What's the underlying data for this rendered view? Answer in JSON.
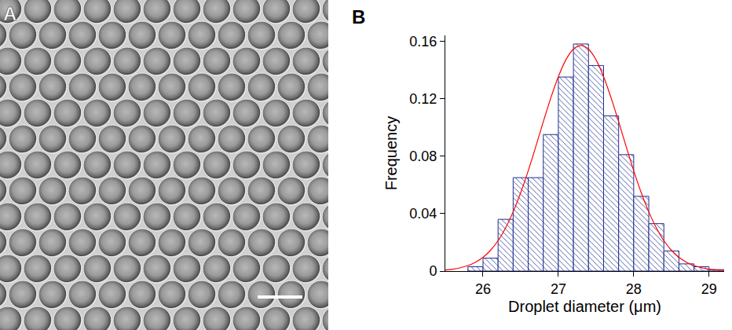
{
  "image_panel": {
    "label": "A"
  },
  "chart_data": {
    "type": "histogram",
    "panel_label": "B",
    "x_label": "Droplet diameter (μm)",
    "y_label": "Frequency",
    "xlim": [
      25.5,
      29.2
    ],
    "xticks": [
      26,
      27,
      28,
      29
    ],
    "ylim": [
      0,
      0.164
    ],
    "yticks": [
      0,
      0.04,
      0.08,
      0.12,
      0.16
    ],
    "grid": false,
    "series": [
      {
        "type": "histogram",
        "marker": "hatched",
        "color": "#1f2f8f",
        "bins": [
          25.8,
          26.0,
          26.2,
          26.4,
          26.6,
          26.8,
          27.0,
          27.2,
          27.4,
          27.6,
          27.8,
          28.0,
          28.2,
          28.4,
          28.6,
          28.8,
          29.0,
          29.2
        ],
        "values": [
          0.003,
          0.009,
          0.036,
          0.065,
          0.065,
          0.095,
          0.135,
          0.158,
          0.143,
          0.108,
          0.081,
          0.052,
          0.033,
          0.014,
          0.005,
          0.003,
          0.001
        ]
      },
      {
        "type": "line",
        "color": "#ff0000",
        "x": [
          25.5,
          25.6,
          25.7,
          25.8,
          25.9,
          26.0,
          26.1,
          26.2,
          26.3,
          26.4,
          26.5,
          26.6,
          26.7,
          26.8,
          26.9,
          27.0,
          27.1,
          27.2,
          27.3,
          27.4,
          27.5,
          27.6,
          27.7,
          27.8,
          27.9,
          28.0,
          28.1,
          28.2,
          28.3,
          28.4,
          28.5,
          28.6,
          28.7,
          28.8,
          28.9,
          29.0,
          29.1,
          29.2
        ],
        "values": [
          0.0007,
          0.0013,
          0.0023,
          0.0038,
          0.0062,
          0.0096,
          0.0145,
          0.0212,
          0.0301,
          0.0412,
          0.0545,
          0.0698,
          0.0866,
          0.1039,
          0.1205,
          0.1353,
          0.147,
          0.1544,
          0.157,
          0.1544,
          0.147,
          0.1353,
          0.1205,
          0.1039,
          0.0866,
          0.0698,
          0.0545,
          0.0412,
          0.0301,
          0.0212,
          0.0145,
          0.0096,
          0.0062,
          0.0038,
          0.0023,
          0.0013,
          0.0007,
          0.0004
        ]
      }
    ]
  }
}
